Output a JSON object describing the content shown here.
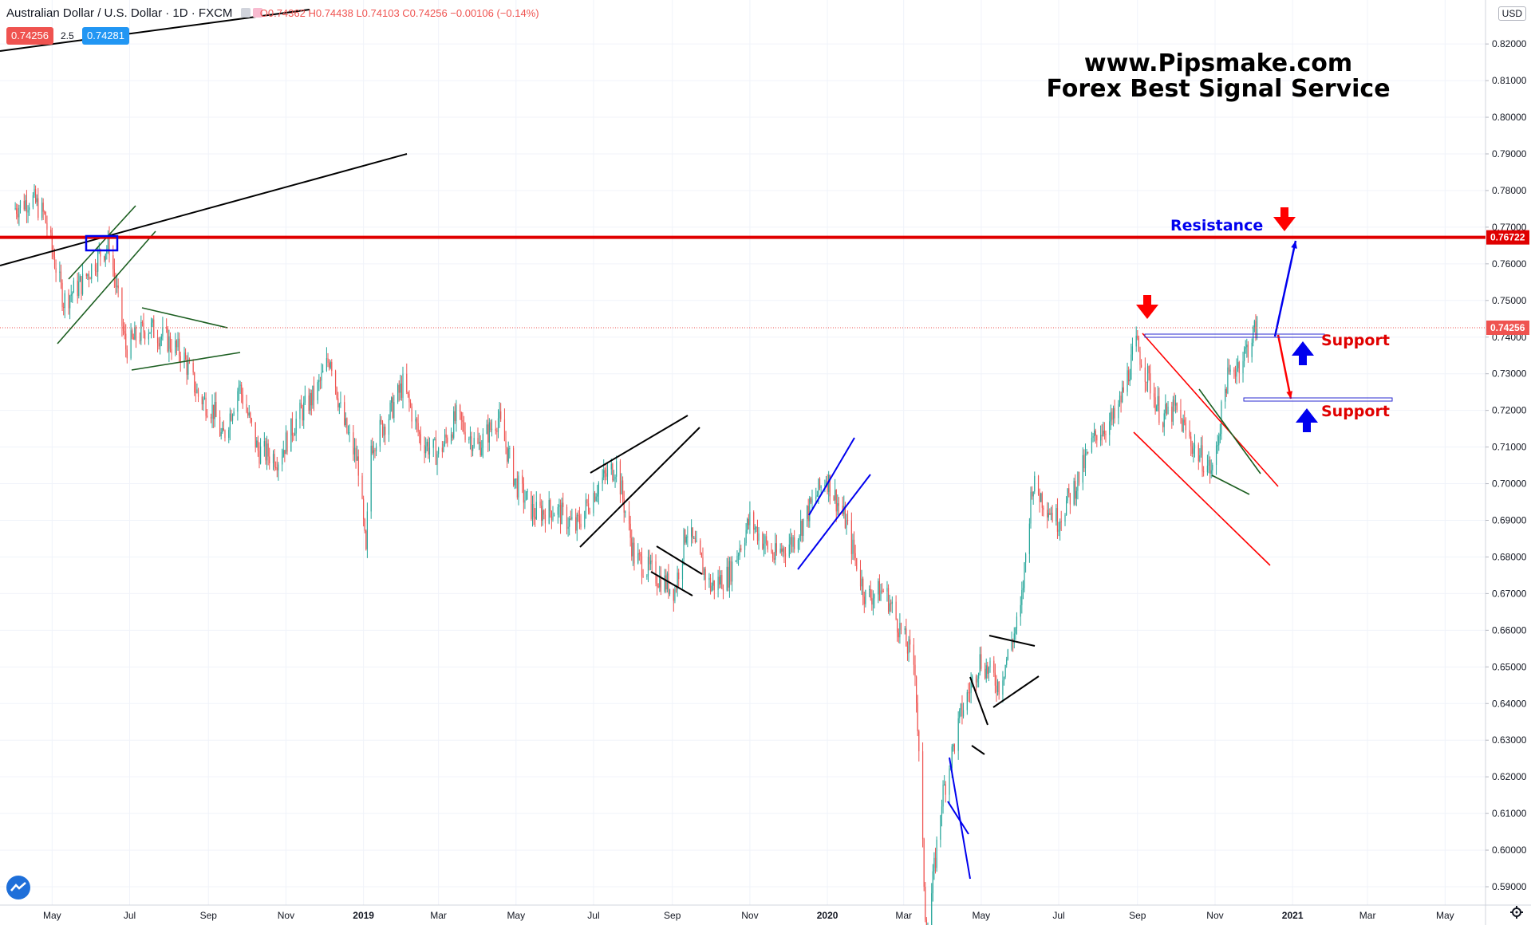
{
  "header": {
    "symbol": "Australian Dollar / U.S. Dollar · 1D · FXCM",
    "ohlc": "O0.74362 H0.74438 L0.74103 C0.74256 −0.00106 (−0.14%)",
    "sell_price": "0.74256",
    "spread": "2.5",
    "buy_price": "0.74281"
  },
  "watermark": {
    "line1": "www.Pipsmake.com",
    "line2": "Forex Best Signal Service"
  },
  "annotations": {
    "resistance": "Resistance",
    "support_upper": "Support",
    "support_lower": "Support"
  },
  "price_axis": {
    "currency": "USD",
    "resistance_tag": "0.76722",
    "current_tag": "0.74256"
  },
  "colors": {
    "up": "#26a69a",
    "down": "#ef5350",
    "resistance_line": "#e00000",
    "blue": "#0000ee",
    "red_text": "#e00000"
  },
  "chart_data": {
    "type": "candlestick",
    "title": "Australian Dollar / U.S. Dollar · 1D · FXCM",
    "ylim": [
      0.585,
      0.832
    ],
    "y_ticks": [
      "0.82000",
      "0.81000",
      "0.80000",
      "0.79000",
      "0.78000",
      "0.77000",
      "0.76000",
      "0.75000",
      "0.74000",
      "0.73000",
      "0.72000",
      "0.71000",
      "0.70000",
      "0.69000",
      "0.68000",
      "0.67000",
      "0.66000",
      "0.65000",
      "0.64000",
      "0.63000",
      "0.62000",
      "0.61000",
      "0.60000",
      "0.59000"
    ],
    "x_ticks": [
      "May",
      "Jul",
      "Sep",
      "Nov",
      "2019",
      "Mar",
      "May",
      "Jul",
      "Sep",
      "Nov",
      "2020",
      "Mar",
      "May",
      "Jul",
      "Sep",
      "Nov",
      "2021",
      "Mar",
      "May"
    ],
    "resistance_level": 0.76722,
    "last_close": 0.74256,
    "price_path": [
      [
        "2018-04-01",
        0.775
      ],
      [
        "2018-04-15",
        0.778
      ],
      [
        "2018-04-25",
        0.773
      ],
      [
        "2018-05-10",
        0.75
      ],
      [
        "2018-05-25",
        0.755
      ],
      [
        "2018-06-08",
        0.763
      ],
      [
        "2018-06-15",
        0.765
      ],
      [
        "2018-06-28",
        0.737
      ],
      [
        "2018-07-15",
        0.743
      ],
      [
        "2018-07-31",
        0.739
      ],
      [
        "2018-08-12",
        0.735
      ],
      [
        "2018-08-24",
        0.724
      ],
      [
        "2018-09-05",
        0.72
      ],
      [
        "2018-09-12",
        0.712
      ],
      [
        "2018-09-25",
        0.727
      ],
      [
        "2018-10-10",
        0.709
      ],
      [
        "2018-10-26",
        0.707
      ],
      [
        "2018-11-10",
        0.718
      ],
      [
        "2018-11-25",
        0.725
      ],
      [
        "2018-12-06",
        0.735
      ],
      [
        "2018-12-15",
        0.718
      ],
      [
        "2018-12-28",
        0.705
      ],
      [
        "2019-01-03",
        0.68
      ],
      [
        "2019-01-06",
        0.71
      ],
      [
        "2019-01-20",
        0.718
      ],
      [
        "2019-02-01",
        0.727
      ],
      [
        "2019-02-15",
        0.712
      ],
      [
        "2019-03-01",
        0.708
      ],
      [
        "2019-03-15",
        0.718
      ],
      [
        "2019-04-01",
        0.71
      ],
      [
        "2019-04-17",
        0.718
      ],
      [
        "2019-05-01",
        0.7
      ],
      [
        "2019-05-15",
        0.692
      ],
      [
        "2019-06-01",
        0.693
      ],
      [
        "2019-06-17",
        0.688
      ],
      [
        "2019-07-05",
        0.7
      ],
      [
        "2019-07-19",
        0.705
      ],
      [
        "2019-08-02",
        0.68
      ],
      [
        "2019-08-15",
        0.676
      ],
      [
        "2019-09-03",
        0.671
      ],
      [
        "2019-09-12",
        0.688
      ],
      [
        "2019-10-01",
        0.672
      ],
      [
        "2019-10-15",
        0.675
      ],
      [
        "2019-11-01",
        0.69
      ],
      [
        "2019-11-20",
        0.68
      ],
      [
        "2019-12-06",
        0.685
      ],
      [
        "2019-12-31",
        0.702
      ],
      [
        "2020-01-15",
        0.69
      ],
      [
        "2020-01-31",
        0.669
      ],
      [
        "2020-02-15",
        0.671
      ],
      [
        "2020-03-02",
        0.657
      ],
      [
        "2020-03-10",
        0.65
      ],
      [
        "2020-03-19",
        0.575
      ],
      [
        "2020-03-31",
        0.614
      ],
      [
        "2020-04-15",
        0.637
      ],
      [
        "2020-04-30",
        0.652
      ],
      [
        "2020-05-15",
        0.645
      ],
      [
        "2020-06-01",
        0.665
      ],
      [
        "2020-06-10",
        0.7
      ],
      [
        "2020-06-30",
        0.69
      ],
      [
        "2020-07-15",
        0.7
      ],
      [
        "2020-07-31",
        0.714
      ],
      [
        "2020-08-15",
        0.718
      ],
      [
        "2020-08-31",
        0.738
      ],
      [
        "2020-09-20",
        0.718
      ],
      [
        "2020-10-01",
        0.72
      ],
      [
        "2020-10-15",
        0.71
      ],
      [
        "2020-10-30",
        0.703
      ],
      [
        "2020-11-10",
        0.728
      ],
      [
        "2020-11-25",
        0.736
      ],
      [
        "2020-12-04",
        0.743
      ]
    ]
  }
}
